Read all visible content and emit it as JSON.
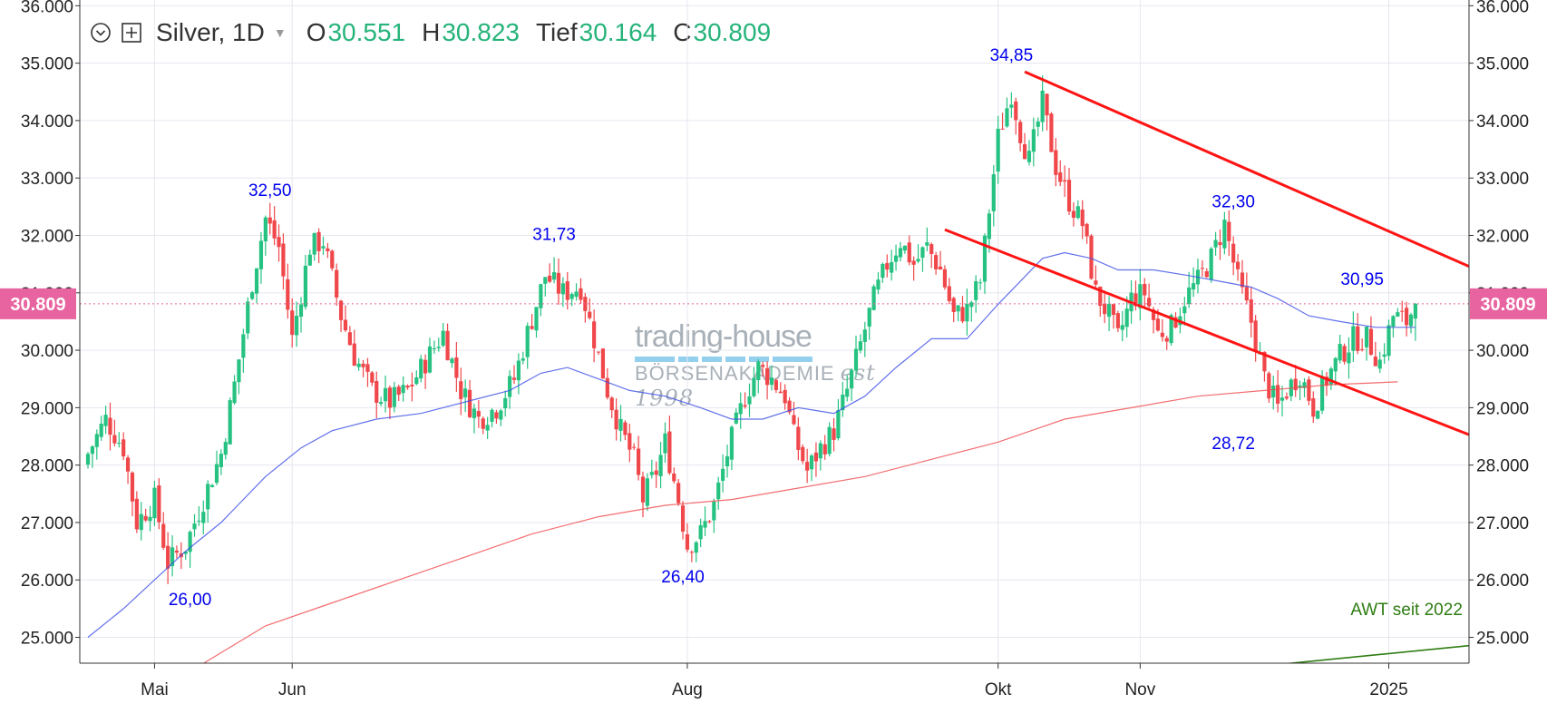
{
  "legend": {
    "symbol": "Silver, 1D",
    "open_label": "O",
    "open": "30.551",
    "high_label": "H",
    "high": "30.823",
    "low_label": "Tief",
    "low": "30.164",
    "close_label": "C",
    "close": "30.809"
  },
  "watermark": {
    "line1": "trading-house",
    "line2": "BÖRSENAKADEMIE",
    "line3": "est 1998"
  },
  "colors": {
    "up": "#26c281",
    "down": "#f0474b",
    "ma50": "#3b4ee6",
    "ma200": "#f0474b",
    "channel": "#ff1414",
    "annotation": "#0000ee",
    "trend": "#2e7d12",
    "price_tag": "#e864a0",
    "grid": "#e6e6f0"
  },
  "chart_data": {
    "type": "candlestick",
    "symbol": "Silver",
    "interval": "1D",
    "ylim": [
      24.55,
      36.1
    ],
    "y_ticks": [
      "25.000",
      "26.000",
      "27.000",
      "28.000",
      "29.000",
      "30.000",
      "31.000",
      "32.000",
      "33.000",
      "34.000",
      "35.000",
      "36.000"
    ],
    "x_ticks": [
      "Mai",
      "Jun",
      "Aug",
      "Okt",
      "Nov",
      "2025"
    ],
    "last_price_label": "30.809",
    "last_price": 30.809,
    "grid": true,
    "series": [
      {
        "name": "Silver",
        "kind": "candles",
        "waypoints": [
          [
            0,
            28.2
          ],
          [
            4,
            28.8
          ],
          [
            8,
            28.3
          ],
          [
            11,
            27.0
          ],
          [
            15,
            27.4
          ],
          [
            18,
            26.3
          ],
          [
            22,
            26.6
          ],
          [
            25,
            27.2
          ],
          [
            30,
            28.2
          ],
          [
            33,
            29.4
          ],
          [
            37,
            31.2
          ],
          [
            40,
            32.3
          ],
          [
            43,
            31.8
          ],
          [
            46,
            30.2
          ],
          [
            50,
            31.8
          ],
          [
            53,
            31.9
          ],
          [
            57,
            30.6
          ],
          [
            60,
            29.9
          ],
          [
            64,
            29.3
          ],
          [
            68,
            29.1
          ],
          [
            72,
            29.3
          ],
          [
            76,
            29.8
          ],
          [
            80,
            30.3
          ],
          [
            84,
            29.3
          ],
          [
            88,
            28.8
          ],
          [
            92,
            29.0
          ],
          [
            96,
            29.5
          ],
          [
            99,
            30.3
          ],
          [
            103,
            31.3
          ],
          [
            107,
            31.0
          ],
          [
            111,
            31.1
          ],
          [
            114,
            30.2
          ],
          [
            117,
            29.3
          ],
          [
            120,
            28.6
          ],
          [
            123,
            28.1
          ],
          [
            125,
            27.4
          ],
          [
            128,
            27.9
          ],
          [
            130,
            28.4
          ],
          [
            133,
            27.4
          ],
          [
            135,
            26.6
          ],
          [
            138,
            26.8
          ],
          [
            141,
            27.3
          ],
          [
            144,
            28.2
          ],
          [
            148,
            29.2
          ],
          [
            151,
            29.7
          ],
          [
            154,
            29.5
          ],
          [
            157,
            29.2
          ],
          [
            159,
            28.5
          ],
          [
            162,
            27.9
          ],
          [
            165,
            28.3
          ],
          [
            168,
            28.6
          ],
          [
            171,
            29.3
          ],
          [
            174,
            30.1
          ],
          [
            177,
            30.9
          ],
          [
            180,
            31.5
          ],
          [
            183,
            31.9
          ],
          [
            186,
            31.5
          ],
          [
            189,
            31.8
          ],
          [
            192,
            31.4
          ],
          [
            195,
            30.6
          ],
          [
            198,
            30.7
          ],
          [
            201,
            31.2
          ],
          [
            205,
            33.7
          ],
          [
            208,
            34.5
          ],
          [
            210,
            33.8
          ],
          [
            212,
            33.3
          ],
          [
            215,
            34.3
          ],
          [
            218,
            33.2
          ],
          [
            221,
            32.6
          ],
          [
            224,
            32.2
          ],
          [
            227,
            31.0
          ],
          [
            230,
            30.6
          ],
          [
            232,
            30.2
          ],
          [
            235,
            30.9
          ],
          [
            238,
            31.0
          ],
          [
            241,
            30.3
          ],
          [
            244,
            30.4
          ],
          [
            247,
            30.9
          ],
          [
            250,
            31.2
          ],
          [
            253,
            31.6
          ],
          [
            256,
            32.2
          ],
          [
            259,
            31.2
          ],
          [
            262,
            30.5
          ],
          [
            265,
            29.5
          ],
          [
            268,
            29.0
          ],
          [
            270,
            29.3
          ],
          [
            273,
            29.6
          ],
          [
            276,
            29.0
          ],
          [
            279,
            29.5
          ],
          [
            282,
            29.9
          ],
          [
            285,
            30.2
          ],
          [
            288,
            30.2
          ],
          [
            291,
            29.8
          ],
          [
            294,
            30.6
          ],
          [
            297,
            30.5
          ],
          [
            299,
            30.81
          ]
        ],
        "last": {
          "open": 30.551,
          "high": 30.823,
          "low": 30.164,
          "close": 30.809
        }
      },
      {
        "name": "MA50",
        "kind": "line",
        "points": [
          [
            0,
            25.0
          ],
          [
            8,
            25.5
          ],
          [
            15,
            26.0
          ],
          [
            22,
            26.5
          ],
          [
            30,
            27.0
          ],
          [
            40,
            27.8
          ],
          [
            48,
            28.3
          ],
          [
            55,
            28.6
          ],
          [
            65,
            28.8
          ],
          [
            75,
            28.9
          ],
          [
            85,
            29.1
          ],
          [
            95,
            29.3
          ],
          [
            102,
            29.6
          ],
          [
            108,
            29.7
          ],
          [
            115,
            29.5
          ],
          [
            122,
            29.3
          ],
          [
            130,
            29.2
          ],
          [
            138,
            29.0
          ],
          [
            145,
            28.8
          ],
          [
            152,
            28.8
          ],
          [
            160,
            29.0
          ],
          [
            168,
            28.9
          ],
          [
            175,
            29.2
          ],
          [
            182,
            29.7
          ],
          [
            190,
            30.2
          ],
          [
            198,
            30.2
          ],
          [
            205,
            30.8
          ],
          [
            210,
            31.2
          ],
          [
            215,
            31.6
          ],
          [
            220,
            31.7
          ],
          [
            226,
            31.6
          ],
          [
            232,
            31.4
          ],
          [
            240,
            31.4
          ],
          [
            248,
            31.3
          ],
          [
            255,
            31.2
          ],
          [
            262,
            31.1
          ],
          [
            268,
            30.9
          ],
          [
            275,
            30.6
          ],
          [
            282,
            30.5
          ],
          [
            290,
            30.4
          ],
          [
            299,
            30.4
          ]
        ]
      },
      {
        "name": "MA200",
        "kind": "line",
        "points": [
          [
            25,
            24.5
          ],
          [
            40,
            25.2
          ],
          [
            55,
            25.6
          ],
          [
            70,
            26.0
          ],
          [
            85,
            26.4
          ],
          [
            100,
            26.8
          ],
          [
            115,
            27.1
          ],
          [
            130,
            27.3
          ],
          [
            145,
            27.4
          ],
          [
            160,
            27.6
          ],
          [
            175,
            27.8
          ],
          [
            190,
            28.1
          ],
          [
            205,
            28.4
          ],
          [
            220,
            28.8
          ],
          [
            235,
            29.0
          ],
          [
            250,
            29.2
          ],
          [
            265,
            29.3
          ],
          [
            280,
            29.4
          ],
          [
            295,
            29.45
          ]
        ]
      }
    ],
    "overlays": {
      "channel_upper": [
        [
          211,
          34.85
        ],
        [
          366,
          29.6
        ]
      ],
      "channel_lower": [
        [
          193,
          32.1
        ],
        [
          365,
          26.9
        ]
      ],
      "long_term_trend": [
        [
          258,
          24.45
        ],
        [
          330,
          25.0
        ]
      ]
    },
    "annotations": [
      {
        "text": "26,00",
        "bar": 23,
        "value": 26.0,
        "position": "below"
      },
      {
        "text": "32,50",
        "bar": 41,
        "value": 32.5,
        "position": "above"
      },
      {
        "text": "26,40",
        "bar": 134,
        "value": 26.4,
        "position": "below"
      },
      {
        "text": "31,73",
        "bar": 105,
        "value": 31.73,
        "position": "above"
      },
      {
        "text": "34,85",
        "bar": 208,
        "value": 34.85,
        "position": "above"
      },
      {
        "text": "32,30",
        "bar": 258,
        "value": 32.3,
        "position": "above"
      },
      {
        "text": "28,72",
        "bar": 258,
        "value": 28.72,
        "position": "below"
      },
      {
        "text": "30,95",
        "bar": 287,
        "value": 30.95,
        "position": "above"
      },
      {
        "text": "AWT seit 2022",
        "bar": 297,
        "value": 25.2,
        "position": "above"
      }
    ]
  }
}
